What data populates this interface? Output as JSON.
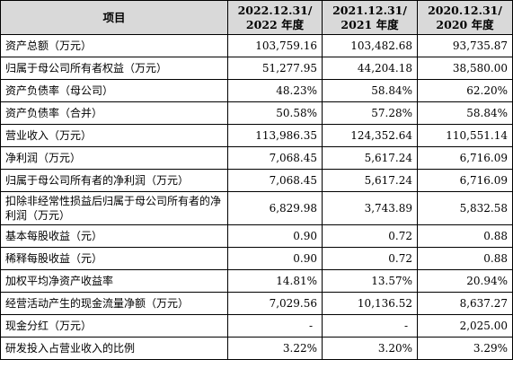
{
  "header": {
    "item": "项目",
    "col1_line1": "2022.12.31/",
    "col1_line2": "2022 年度",
    "col2_line1": "2021.12.31/",
    "col2_line2": "2021 年度",
    "col3_line1": "2020.12.31/",
    "col3_line2": "2020 年度"
  },
  "rows": [
    {
      "label": "资产总额（万元）",
      "v2022": "103,759.16",
      "v2021": "103,482.68",
      "v2020": "93,735.87"
    },
    {
      "label": "归属于母公司所有者权益（万元）",
      "v2022": "51,277.95",
      "v2021": "44,204.18",
      "v2020": "38,580.00"
    },
    {
      "label": "资产负债率（母公司）",
      "v2022": "48.23%",
      "v2021": "58.84%",
      "v2020": "62.20%"
    },
    {
      "label": "资产负债率（合并）",
      "v2022": "50.58%",
      "v2021": "57.28%",
      "v2020": "58.84%"
    },
    {
      "label": "营业收入（万元）",
      "v2022": "113,986.35",
      "v2021": "124,352.64",
      "v2020": "110,551.14"
    },
    {
      "label": "净利润（万元）",
      "v2022": "7,068.45",
      "v2021": "5,617.24",
      "v2020": "6,716.09"
    },
    {
      "label": "归属于母公司所有者的净利润（万元）",
      "v2022": "7,068.45",
      "v2021": "5,617.24",
      "v2020": "6,716.09"
    },
    {
      "label": "扣除非经常性损益后归属于母公司所有者的净利润（万元）",
      "v2022": "6,829.98",
      "v2021": "3,743.89",
      "v2020": "5,832.58"
    },
    {
      "label": "基本每股收益（元）",
      "v2022": "0.90",
      "v2021": "0.72",
      "v2020": "0.88"
    },
    {
      "label": "稀释每股收益（元）",
      "v2022": "0.90",
      "v2021": "0.72",
      "v2020": "0.88"
    },
    {
      "label": "加权平均净资产收益率",
      "v2022": "14.81%",
      "v2021": "13.57%",
      "v2020": "20.94%"
    },
    {
      "label": "经营活动产生的现金流量净额（万元）",
      "v2022": "7,029.56",
      "v2021": "10,136.52",
      "v2020": "8,637.27"
    },
    {
      "label": "现金分红（万元）",
      "v2022": "-",
      "v2021": "-",
      "v2020": "2,025.00"
    },
    {
      "label": "研发投入占营业收入的比例",
      "v2022": "3.22%",
      "v2021": "3.20%",
      "v2020": "3.29%"
    }
  ]
}
